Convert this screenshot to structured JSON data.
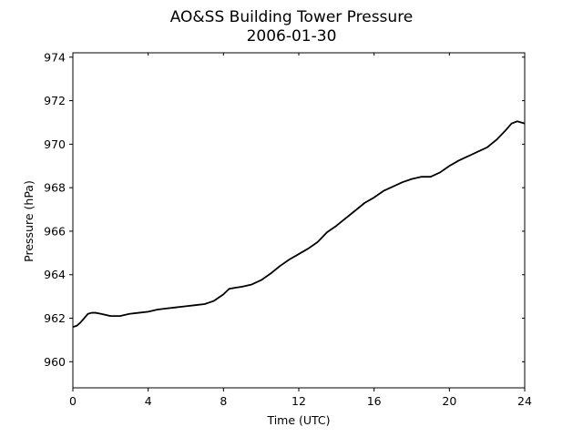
{
  "chart_data": {
    "type": "line",
    "title": "AO&SS Building Tower Pressure",
    "subtitle": "2006-01-30",
    "xlabel": "Time (UTC)",
    "ylabel": "Pressure (hPa)",
    "xlim": [
      0,
      24
    ],
    "ylim": [
      958.8,
      974.2
    ],
    "xticks": [
      0,
      4,
      8,
      12,
      16,
      20,
      24
    ],
    "yticks": [
      960,
      962,
      964,
      966,
      968,
      970,
      972,
      974
    ],
    "grid": false,
    "line_color": "#000000",
    "series": [
      {
        "x": [
          0,
          0.2,
          0.4,
          0.6,
          0.8,
          1.0,
          1.2,
          1.5,
          2.0,
          2.5,
          3.0,
          3.5,
          4.0,
          4.5,
          5.0,
          5.5,
          6.0,
          6.5,
          7.0,
          7.5,
          8.0,
          8.3,
          8.6,
          9.0,
          9.5,
          10.0,
          10.5,
          11.0,
          11.5,
          12.0,
          12.5,
          13.0,
          13.5,
          14.0,
          14.5,
          15.0,
          15.5,
          16.0,
          16.5,
          17.0,
          17.5,
          18.0,
          18.5,
          19.0,
          19.5,
          20.0,
          20.5,
          21.0,
          21.5,
          22.0,
          22.5,
          23.0,
          23.3,
          23.6,
          24.0
        ],
        "y": [
          961.6,
          961.65,
          961.8,
          962.0,
          962.2,
          962.25,
          962.25,
          962.2,
          962.1,
          962.1,
          962.2,
          962.25,
          962.3,
          962.4,
          962.45,
          962.5,
          962.55,
          962.6,
          962.65,
          962.8,
          963.1,
          963.35,
          963.4,
          963.45,
          963.55,
          963.75,
          964.05,
          964.4,
          964.7,
          964.95,
          965.2,
          965.5,
          965.95,
          966.25,
          966.6,
          966.95,
          967.3,
          967.55,
          967.85,
          968.05,
          968.25,
          968.4,
          968.5,
          968.5,
          968.7,
          969.0,
          969.25,
          969.45,
          969.65,
          969.85,
          970.2,
          970.65,
          970.95,
          971.05,
          970.95
        ]
      }
    ]
  }
}
